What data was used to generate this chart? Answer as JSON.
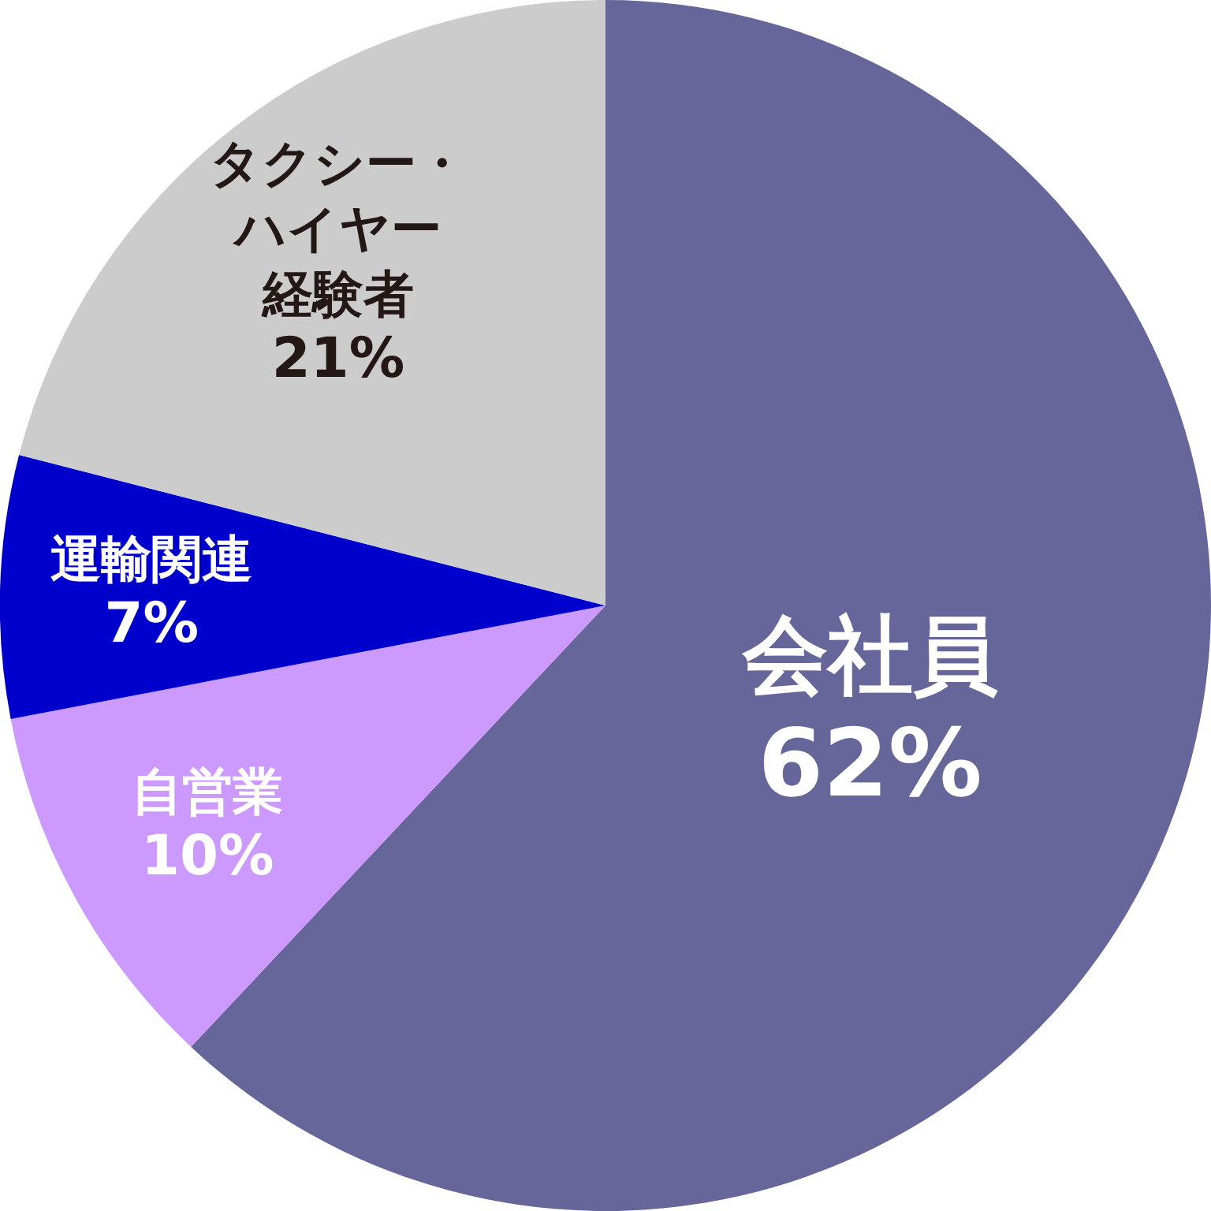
{
  "chart_data": {
    "type": "pie",
    "categories": [
      "会社員",
      "自営業",
      "運輸関連",
      "タクシー・ハイヤー経験者"
    ],
    "values": [
      62,
      10,
      7,
      21
    ],
    "colors": [
      "#66669a",
      "#cc99ff",
      "#0000cc",
      "#cccccc"
    ],
    "value_labels": [
      "62%",
      "10%",
      "7%",
      "21%"
    ]
  }
}
